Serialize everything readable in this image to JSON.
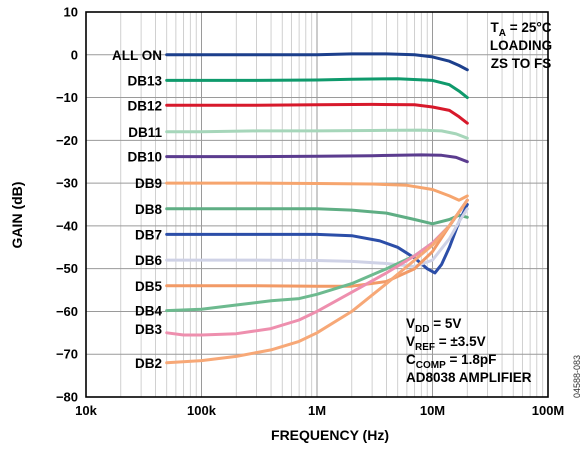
{
  "chart_data": {
    "type": "line",
    "xlabel": "FREQUENCY (Hz)",
    "ylabel": "GAIN (dB)",
    "x_scale": "log",
    "xlim": [
      10000,
      100000000
    ],
    "ylim": [
      -80,
      10
    ],
    "grid": true,
    "x_ticks": [
      {
        "value": 10000,
        "label": "10k"
      },
      {
        "value": 100000,
        "label": "100k"
      },
      {
        "value": 1000000,
        "label": "1M"
      },
      {
        "value": 10000000,
        "label": "10M"
      },
      {
        "value": 100000000,
        "label": "100M"
      }
    ],
    "y_ticks": [
      10,
      0,
      -10,
      -20,
      -30,
      -40,
      -50,
      -60,
      -70,
      -80
    ],
    "annotations": {
      "top_right": [
        "T_A = 25°C",
        "LOADING",
        "ZS TO FS"
      ],
      "bottom_right": [
        "V_DD = 5V",
        "V_REF = ±3.5V",
        "C_COMP = 1.8pF",
        "AD8038 AMPLIFIER"
      ]
    },
    "figure_id": "04588-083",
    "series": [
      {
        "name": "ALL ON",
        "color": "#1c3f8c",
        "x": [
          50000,
          100000,
          300000,
          1000000,
          2000000,
          4000000,
          7000000,
          10000000,
          14000000,
          17000000,
          20000000
        ],
        "y": [
          0,
          0,
          0,
          0,
          0.2,
          0.2,
          0,
          -0.5,
          -1.5,
          -2.5,
          -3.5
        ]
      },
      {
        "name": "DB13",
        "color": "#0f9a6c",
        "x": [
          50000,
          100000,
          300000,
          1000000,
          2000000,
          5000000,
          10000000,
          14000000,
          17000000,
          20000000
        ],
        "y": [
          -6,
          -6,
          -6,
          -5.9,
          -5.7,
          -5.6,
          -6,
          -7,
          -8.5,
          -10
        ]
      },
      {
        "name": "DB12",
        "color": "#d7192b",
        "x": [
          50000,
          100000,
          300000,
          1000000,
          3000000,
          7000000,
          10000000,
          14000000,
          17000000,
          20000000
        ],
        "y": [
          -11.8,
          -11.8,
          -11.8,
          -11.7,
          -11.6,
          -11.7,
          -12.2,
          -13,
          -14.5,
          -16
        ]
      },
      {
        "name": "DB11",
        "color": "#a6d6ba",
        "x": [
          50000,
          100000,
          300000,
          1000000,
          3000000,
          8000000,
          12000000,
          16000000,
          20000000
        ],
        "y": [
          -18,
          -18,
          -17.8,
          -17.8,
          -17.7,
          -17.6,
          -17.8,
          -18.5,
          -19.5
        ]
      },
      {
        "name": "DB10",
        "color": "#5b3c8f",
        "x": [
          50000,
          100000,
          300000,
          1000000,
          3000000,
          8000000,
          12000000,
          16000000,
          20000000
        ],
        "y": [
          -23.8,
          -23.8,
          -23.8,
          -23.7,
          -23.6,
          -23.4,
          -23.5,
          -24,
          -25
        ]
      },
      {
        "name": "DB9",
        "color": "#f6a56e",
        "x": [
          50000,
          100000,
          300000,
          1000000,
          3000000,
          6000000,
          10000000,
          14000000,
          17000000,
          20000000
        ],
        "y": [
          -30,
          -30,
          -30,
          -30.1,
          -30.2,
          -30.5,
          -31.5,
          -33,
          -34,
          -33
        ]
      },
      {
        "name": "DB8",
        "color": "#5fae84",
        "x": [
          50000,
          100000,
          300000,
          1000000,
          2000000,
          4000000,
          7000000,
          10000000,
          14000000,
          17000000,
          20000000
        ],
        "y": [
          -36,
          -36,
          -36,
          -36,
          -36.3,
          -37,
          -38.5,
          -39.5,
          -38.5,
          -37.5,
          -38
        ]
      },
      {
        "name": "DB7",
        "color": "#2c4ea8",
        "x": [
          50000,
          100000,
          300000,
          1000000,
          2000000,
          3500000,
          5000000,
          7000000,
          9000000,
          10500000,
          12000000,
          14000000,
          17000000,
          20000000
        ],
        "y": [
          -42,
          -42,
          -42,
          -42,
          -42.3,
          -43.5,
          -45,
          -47.5,
          -50,
          -51,
          -49,
          -45,
          -39,
          -35
        ]
      },
      {
        "name": "DB6",
        "color": "#cfd2e6",
        "x": [
          50000,
          100000,
          300000,
          1000000,
          2000000,
          4000000,
          7000000,
          10000000,
          14000000,
          17000000,
          20000000
        ],
        "y": [
          -48,
          -48,
          -48,
          -48.1,
          -48.3,
          -48.8,
          -49.5,
          -48,
          -43,
          -39,
          -36
        ]
      },
      {
        "name": "DB5",
        "color": "#f29a66",
        "x": [
          50000,
          100000,
          300000,
          1000000,
          2000000,
          4000000,
          7000000,
          10000000,
          14000000,
          20000000
        ],
        "y": [
          -54,
          -54,
          -54,
          -54.1,
          -54.1,
          -53,
          -50,
          -46,
          -40,
          -34
        ]
      },
      {
        "name": "DB4",
        "color": "#6dba8f",
        "x": [
          50000,
          100000,
          200000,
          400000,
          700000,
          1000000,
          2000000,
          4000000,
          7000000,
          10000000,
          14000000,
          20000000
        ],
        "y": [
          -59.8,
          -59.5,
          -58.5,
          -57.5,
          -57,
          -56,
          -53.5,
          -50,
          -47,
          -44,
          -40,
          -34
        ]
      },
      {
        "name": "DB3",
        "color": "#ee8fae",
        "x": [
          50000,
          70000,
          100000,
          200000,
          400000,
          700000,
          1000000,
          2000000,
          4000000,
          7000000,
          10000000,
          14000000,
          20000000
        ],
        "y": [
          -65,
          -65.5,
          -65.5,
          -65.2,
          -64,
          -62,
          -60,
          -55.5,
          -51,
          -47,
          -44,
          -40,
          -34
        ]
      },
      {
        "name": "DB2",
        "color": "#f7a877",
        "x": [
          50000,
          100000,
          200000,
          400000,
          700000,
          1000000,
          2000000,
          4000000,
          7000000,
          10000000,
          14000000,
          20000000
        ],
        "y": [
          -72,
          -71.5,
          -70.5,
          -69,
          -67,
          -65,
          -60,
          -53.5,
          -48,
          -44.5,
          -40,
          -34
        ]
      }
    ]
  }
}
